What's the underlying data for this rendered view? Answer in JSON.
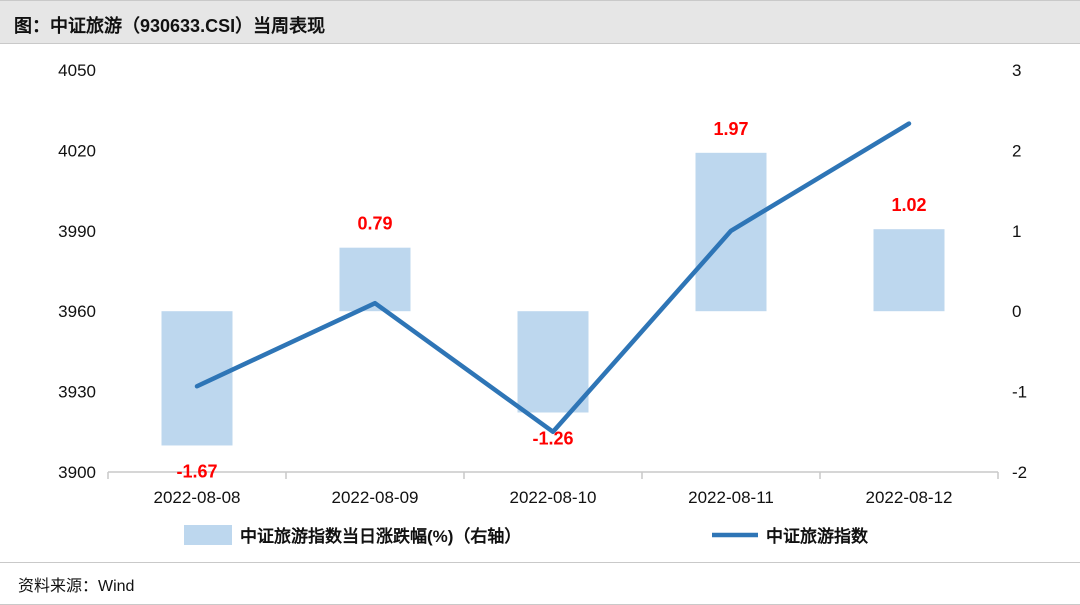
{
  "header": {
    "title": "图：中证旅游（930633.CSI）当周表现"
  },
  "footer": {
    "source": "资料来源：Wind"
  },
  "colors": {
    "bar": "#bdd7ee",
    "line": "#2e75b6",
    "label": "#ff0000",
    "axis": "#c9c9c9"
  },
  "chart_data": {
    "type": "bar",
    "categories": [
      "2022-08-08",
      "2022-08-09",
      "2022-08-10",
      "2022-08-11",
      "2022-08-12"
    ],
    "series": [
      {
        "name": "中证旅游指数当日涨跌幅(%)（右轴）",
        "type": "bar",
        "axis": "right",
        "values": [
          -1.67,
          0.79,
          -1.26,
          1.97,
          1.02
        ],
        "labels": [
          "-1.67",
          "0.79",
          "-1.26",
          "1.97",
          "1.02"
        ]
      },
      {
        "name": "中证旅游指数",
        "type": "line",
        "axis": "left",
        "values": [
          3932,
          3963,
          3915,
          3990,
          4030
        ]
      }
    ],
    "left_axis": {
      "ylim": [
        3900,
        4050
      ],
      "ticks": [
        "3900",
        "3930",
        "3960",
        "3990",
        "4020",
        "4050"
      ]
    },
    "right_axis": {
      "ylim": [
        -2,
        3
      ],
      "ticks": [
        "-2",
        "-1",
        "0",
        "1",
        "2",
        "3"
      ]
    },
    "grid": false,
    "legend": "bottom"
  }
}
